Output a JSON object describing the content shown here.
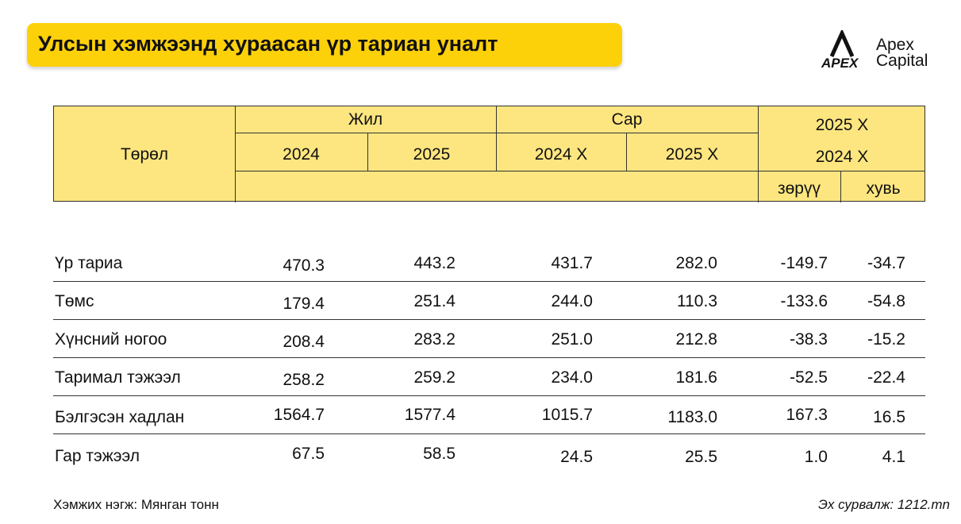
{
  "title": "Улсын хэмжээнд хураасан үр тариан уналт",
  "logo": {
    "line1": "Apex",
    "line2": "Capital",
    "mark_text": "APEX"
  },
  "header": {
    "type_label": "Төрөл",
    "year_group": "Жил",
    "month_group": "Сар",
    "year_2024": "2024",
    "year_2025": "2025",
    "month_2024": "2024 X",
    "month_2025": "2025 X",
    "compare_line1": "2025 X",
    "compare_line2": "2024 X",
    "diff_label": "зөрүү",
    "pct_label": "хувь"
  },
  "rows": [
    {
      "name": "Үр тариа",
      "y2024": "470.3",
      "y2025": "443.2",
      "m2024": "431.7",
      "m2025": "282.0",
      "diff": "-149.7",
      "pct": "-34.7"
    },
    {
      "name": "Төмс",
      "y2024": "179.4",
      "y2025": "251.4",
      "m2024": "244.0",
      "m2025": "110.3",
      "diff": "-133.6",
      "pct": "-54.8"
    },
    {
      "name": "Хүнсний ногоо",
      "y2024": "208.4",
      "y2025": "283.2",
      "m2024": "251.0",
      "m2025": "212.8",
      "diff": "-38.3",
      "pct": "-15.2"
    },
    {
      "name": "Таримал тэжээл",
      "y2024": "258.2",
      "y2025": "259.2",
      "m2024": "234.0",
      "m2025": "181.6",
      "diff": "-52.5",
      "pct": "-22.4"
    },
    {
      "name": "Бэлгэсэн хадлан",
      "y2024": "1564.7",
      "y2025": "1577.4",
      "m2024": "1015.7",
      "m2025": "1183.0",
      "diff": "167.3",
      "pct": "16.5"
    },
    {
      "name": "Гар тэжээл",
      "y2024": "67.5",
      "y2025": "58.5",
      "m2024": "24.5",
      "m2025": "25.5",
      "diff": "1.0",
      "pct": "4.1"
    }
  ],
  "footer": {
    "unit": "Хэмжих нэгж: Мянган тонн",
    "source": "Эх сурвалж: 1212.mn"
  }
}
